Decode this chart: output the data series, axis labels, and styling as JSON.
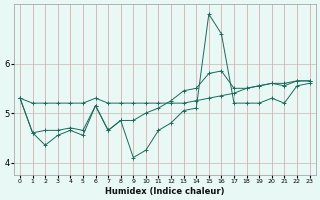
{
  "title": "",
  "xlabel": "Humidex (Indice chaleur)",
  "bg_color": "#e8f8f5",
  "line_color": "#1a6b5a",
  "grid_color": "#c8b8b8",
  "x_ticks": [
    0,
    1,
    2,
    3,
    4,
    5,
    6,
    7,
    8,
    9,
    10,
    11,
    12,
    13,
    14,
    15,
    16,
    17,
    18,
    19,
    20,
    21,
    22,
    23
  ],
  "ylim": [
    3.75,
    7.2
  ],
  "yticks": [
    4,
    5,
    6
  ],
  "line1_y": [
    5.3,
    4.6,
    4.65,
    4.65,
    4.7,
    4.65,
    5.15,
    4.65,
    4.85,
    4.1,
    4.25,
    4.65,
    4.8,
    5.05,
    5.1,
    7.0,
    6.6,
    5.2,
    5.2,
    5.2,
    5.3,
    5.2,
    5.55,
    5.6
  ],
  "line2_y": [
    5.3,
    5.2,
    5.2,
    5.2,
    5.2,
    5.2,
    5.3,
    5.2,
    5.2,
    5.2,
    5.2,
    5.2,
    5.2,
    5.2,
    5.25,
    5.3,
    5.35,
    5.4,
    5.5,
    5.55,
    5.6,
    5.6,
    5.65,
    5.65
  ],
  "line3_y": [
    5.3,
    4.6,
    4.35,
    4.55,
    4.65,
    4.55,
    5.15,
    4.65,
    4.85,
    4.85,
    5.0,
    5.1,
    5.25,
    5.45,
    5.5,
    5.8,
    5.85,
    5.5,
    5.5,
    5.55,
    5.6,
    5.55,
    5.65,
    5.65
  ]
}
